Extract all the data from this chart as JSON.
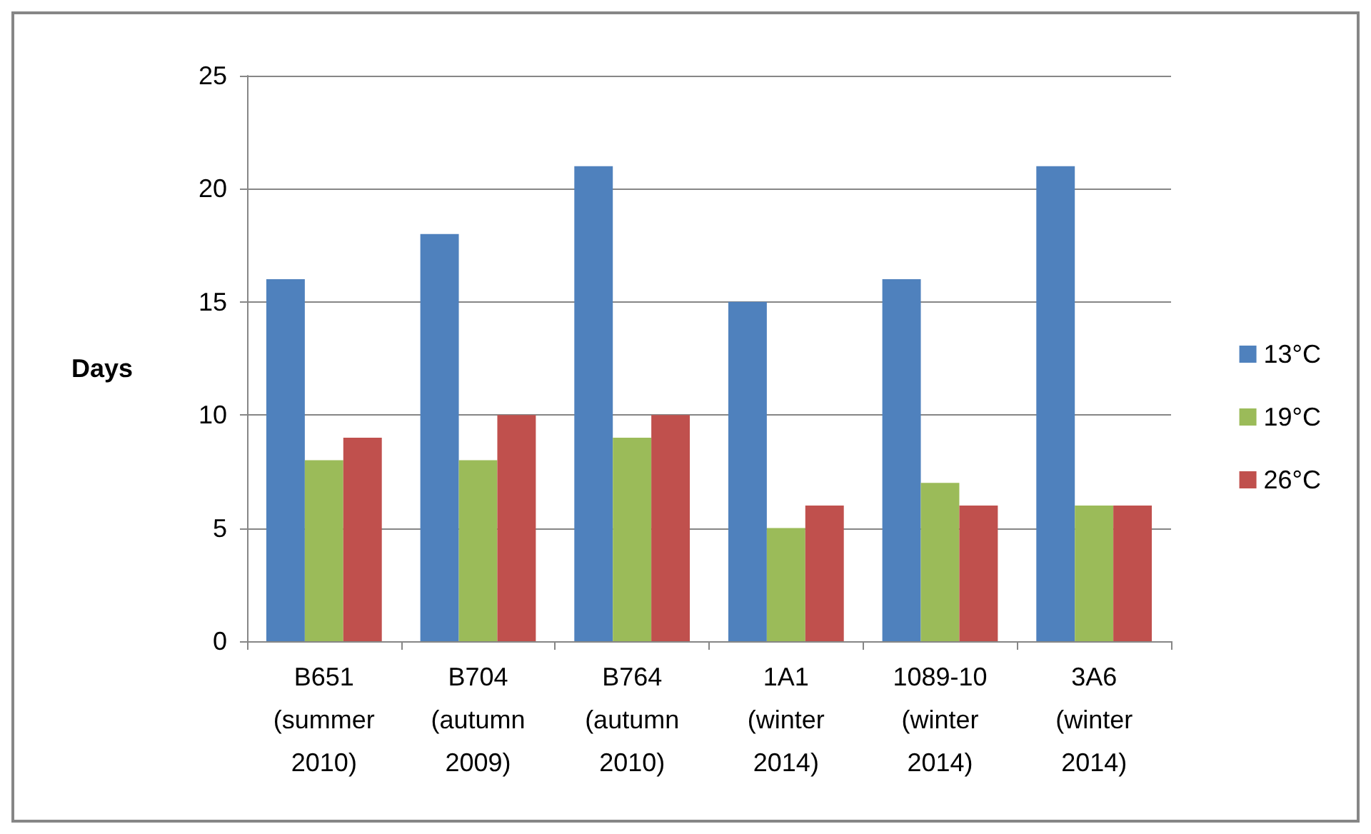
{
  "chart_data": {
    "type": "bar",
    "ylabel": "Days",
    "categories": [
      "B651\n(summer\n2010)",
      "B704\n(autumn\n2009)",
      "B764\n(autumn\n2010)",
      "1A1\n(winter\n2014)",
      "1089-10\n(winter\n2014)",
      "3A6\n(winter\n2014)"
    ],
    "series": [
      {
        "name": "13°C",
        "color": "#4f81bd",
        "values": [
          16,
          18,
          21,
          15,
          16,
          21
        ]
      },
      {
        "name": "19°C",
        "color": "#9bbb59",
        "values": [
          8,
          8,
          9,
          5,
          7,
          6
        ]
      },
      {
        "name": "26°C",
        "color": "#c0504d",
        "values": [
          9,
          10,
          10,
          6,
          6,
          6
        ]
      }
    ],
    "ylim": [
      0,
      25
    ],
    "yticks": [
      0,
      5,
      10,
      15,
      20,
      25
    ],
    "grid": "y",
    "legend": "right"
  }
}
